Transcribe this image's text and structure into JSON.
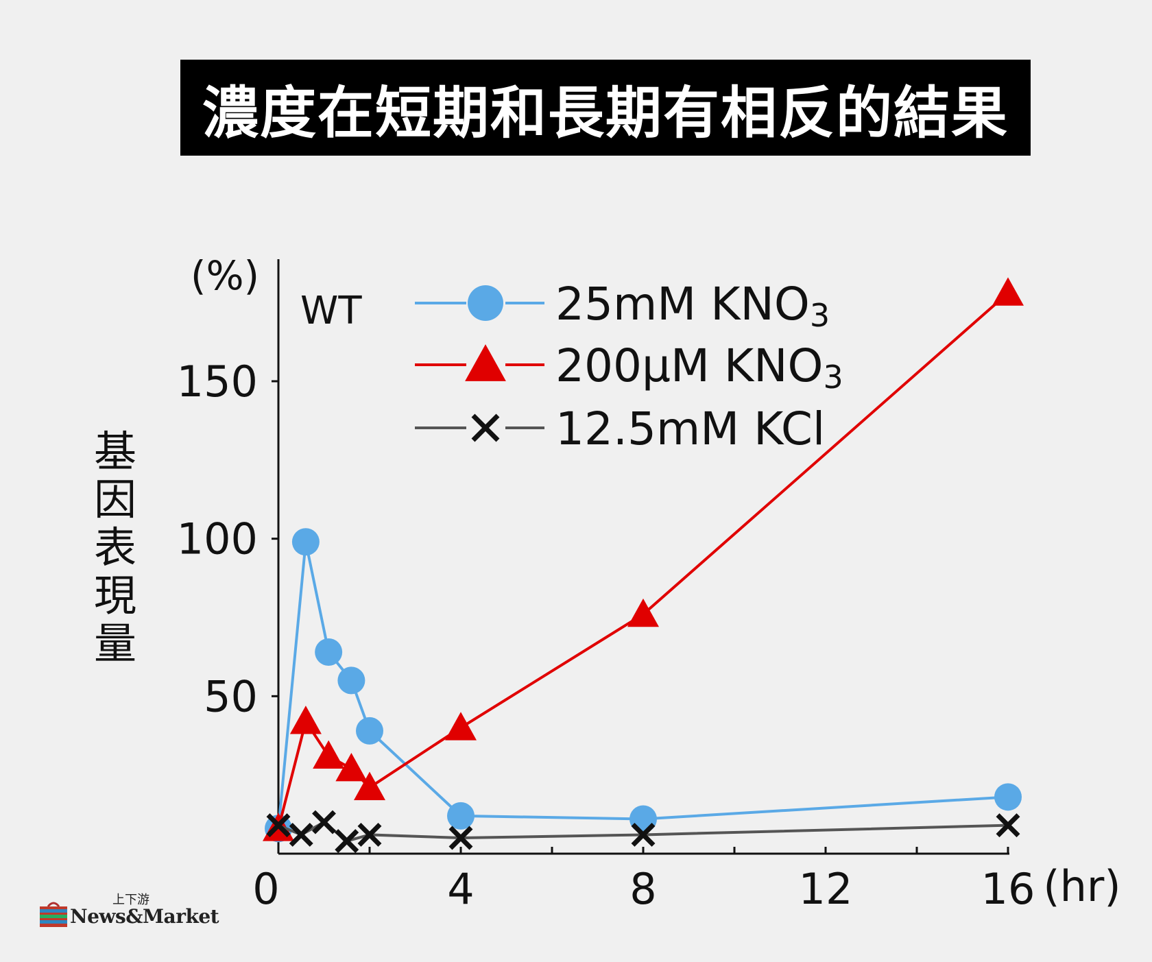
{
  "title": "濃度在短期和長期有相反的結果",
  "chart_data": {
    "type": "line",
    "title": "濃度在短期和長期有相反的結果",
    "annotation": "WT",
    "ylabel": "基因表現量",
    "yunit": "(%)",
    "xunit": "(hr)",
    "xlim": [
      0,
      16
    ],
    "ylim": [
      0,
      185
    ],
    "xticks": [
      0,
      4,
      8,
      12,
      16
    ],
    "yticks": [
      50,
      100,
      150
    ],
    "series": [
      {
        "name": "25mM KNO",
        "subscript": "3",
        "color": "#5aa9e6",
        "marker": "circle",
        "x": [
          0,
          0.6,
          1.1,
          1.6,
          2,
          4,
          8,
          16
        ],
        "y": [
          8,
          99,
          64,
          55,
          39,
          12,
          11,
          18
        ]
      },
      {
        "name": "200μM KNO",
        "subscript": "3",
        "color": "#e00000",
        "marker": "triangle",
        "x": [
          0,
          0.6,
          1.1,
          1.6,
          2,
          4,
          8,
          16
        ],
        "y": [
          8,
          42,
          31,
          27,
          21,
          40,
          76,
          178
        ]
      },
      {
        "name": "12.5mM KCl",
        "subscript": "",
        "color": "#555555",
        "marker": "x",
        "x": [
          0,
          0.5,
          1,
          1.5,
          2,
          4,
          8,
          16
        ],
        "y": [
          9,
          6,
          10,
          4,
          6,
          5,
          6,
          9
        ]
      }
    ]
  },
  "logo": {
    "top_text": "上下游",
    "main_text": "News&Market"
  }
}
